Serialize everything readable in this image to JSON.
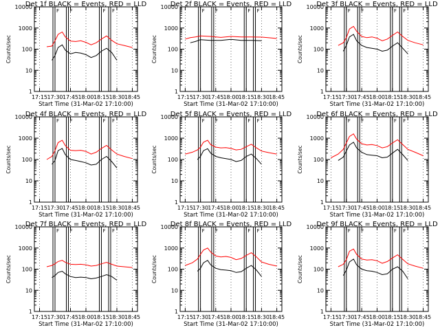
{
  "figure": {
    "xlabel": "Start Time (31-Mar-02 17:10:00)",
    "ylabel": "Counts/sec",
    "x_ticks": [
      "17:15",
      "17:30",
      "17:45",
      "18:00",
      "18:15",
      "18:30",
      "18:45"
    ],
    "y_ticks": [
      "1",
      "10",
      "100",
      "1000",
      "10000"
    ],
    "colors": {
      "events": "#000000",
      "lld": "#ff0000"
    }
  },
  "chart_data": [
    {
      "type": "line",
      "title": "Det 1f BLACK = Events, RED = LLD",
      "xlabel": "Start Time (31-Mar-02 17:10:00)",
      "ylabel": "Counts/sec",
      "ylog": true,
      "ylim": [
        1,
        10000
      ],
      "x_ticks": [
        "17:15",
        "17:30",
        "17:45",
        "18:00",
        "18:15",
        "18:30",
        "18:45"
      ],
      "x": [
        "17:22",
        "17:27",
        "17:30",
        "17:33",
        "17:37",
        "17:40",
        "17:45",
        "17:50",
        "17:55",
        "18:00",
        "18:05",
        "18:10",
        "18:15",
        "18:20",
        "18:25",
        "18:30",
        "18:37",
        "18:45"
      ],
      "series": [
        {
          "name": "Events",
          "values": [
            null,
            30,
            50,
            120,
            160,
            90,
            60,
            70,
            65,
            55,
            40,
            50,
            80,
            110,
            70,
            30,
            null,
            null
          ]
        },
        {
          "name": "LLD",
          "values": [
            130,
            140,
            250,
            500,
            650,
            380,
            240,
            230,
            250,
            210,
            160,
            200,
            300,
            420,
            260,
            180,
            150,
            120
          ]
        }
      ],
      "annotations": [
        "F",
        "F",
        "F",
        "F"
      ]
    },
    {
      "type": "line",
      "title": "Det 2f BLACK = Events, RED = LLD",
      "xlabel": "Start Time (31-Mar-02 17:10:00)",
      "ylabel": "Counts/sec",
      "ylog": true,
      "ylim": [
        1,
        10000
      ],
      "x_ticks": [
        "17:15",
        "17:30",
        "17:45",
        "18:00",
        "18:15",
        "18:30",
        "18:45"
      ],
      "x": [
        "17:15",
        "17:20",
        "17:25",
        "17:30",
        "17:40",
        "17:50",
        "18:00",
        "18:10",
        "18:20",
        "18:30",
        "18:40",
        "18:45"
      ],
      "series": [
        {
          "name": "Events",
          "values": [
            null,
            200,
            230,
            280,
            260,
            260,
            290,
            260,
            260,
            250,
            null,
            null
          ]
        },
        {
          "name": "LLD",
          "values": [
            300,
            350,
            380,
            420,
            400,
            360,
            400,
            380,
            380,
            370,
            340,
            320
          ]
        }
      ],
      "annotations": [
        "F",
        "F",
        "F",
        "F"
      ]
    },
    {
      "type": "line",
      "title": "Det 3f BLACK = Events, RED = LLD",
      "xlabel": "Start Time (31-Mar-02 17:10:00)",
      "ylabel": "Counts/sec",
      "ylog": true,
      "ylim": [
        1,
        10000
      ],
      "x_ticks": [
        "17:15",
        "17:30",
        "17:45",
        "18:00",
        "18:15",
        "18:30",
        "18:45"
      ],
      "x": [
        "17:22",
        "17:27",
        "17:30",
        "17:33",
        "17:37",
        "17:40",
        "17:45",
        "17:50",
        "17:55",
        "18:00",
        "18:05",
        "18:10",
        "18:15",
        "18:20",
        "18:25",
        "18:30",
        "18:37",
        "18:45"
      ],
      "series": [
        {
          "name": "Events",
          "values": [
            null,
            80,
            150,
            380,
            500,
            250,
            150,
            120,
            110,
            100,
            80,
            90,
            140,
            200,
            110,
            60,
            null,
            null
          ]
        },
        {
          "name": "LLD",
          "values": [
            150,
            200,
            350,
            900,
            1200,
            700,
            400,
            350,
            380,
            330,
            250,
            300,
            450,
            650,
            400,
            260,
            200,
            160
          ]
        }
      ],
      "annotations": [
        "F",
        "F",
        "F",
        "F"
      ]
    },
    {
      "type": "line",
      "title": "Det 4f BLACK = Events, RED = LLD",
      "xlabel": "Start Time (31-Mar-02 17:10:00)",
      "ylabel": "Counts/sec",
      "ylog": true,
      "ylim": [
        1,
        10000
      ],
      "x_ticks": [
        "17:15",
        "17:30",
        "17:45",
        "18:00",
        "18:15",
        "18:30",
        "18:45"
      ],
      "x": [
        "17:22",
        "17:27",
        "17:30",
        "17:33",
        "17:37",
        "17:40",
        "17:45",
        "17:50",
        "17:55",
        "18:00",
        "18:05",
        "18:10",
        "18:15",
        "18:20",
        "18:25",
        "18:30",
        "18:37",
        "18:45"
      ],
      "series": [
        {
          "name": "Events",
          "values": [
            null,
            60,
            90,
            260,
            330,
            170,
            100,
            90,
            80,
            70,
            55,
            60,
            100,
            140,
            80,
            40,
            null,
            null
          ]
        },
        {
          "name": "LLD",
          "values": [
            100,
            140,
            260,
            620,
            800,
            450,
            270,
            260,
            270,
            240,
            180,
            220,
            330,
            460,
            280,
            180,
            140,
            110
          ]
        }
      ],
      "annotations": [
        "F",
        "F",
        "F",
        "F"
      ]
    },
    {
      "type": "line",
      "title": "Det 5f BLACK = Events, RED = LLD",
      "xlabel": "Start Time (31-Mar-02 17:10:00)",
      "ylabel": "Counts/sec",
      "ylog": true,
      "ylim": [
        1,
        10000
      ],
      "x_ticks": [
        "17:15",
        "17:30",
        "17:45",
        "18:00",
        "18:15",
        "18:30",
        "18:45"
      ],
      "x": [
        "17:15",
        "17:22",
        "17:27",
        "17:30",
        "17:33",
        "17:37",
        "17:40",
        "17:45",
        "17:50",
        "17:55",
        "18:00",
        "18:05",
        "18:10",
        "18:15",
        "18:20",
        "18:25",
        "18:30",
        "18:37",
        "18:45"
      ],
      "series": [
        {
          "name": "Events",
          "values": [
            null,
            null,
            100,
            140,
            260,
            320,
            200,
            140,
            120,
            110,
            100,
            80,
            90,
            140,
            180,
            110,
            60,
            null,
            null
          ]
        },
        {
          "name": "LLD",
          "values": [
            180,
            220,
            280,
            380,
            650,
            800,
            500,
            380,
            350,
            360,
            330,
            280,
            300,
            400,
            520,
            350,
            250,
            210,
            180
          ]
        }
      ],
      "annotations": [
        "F",
        "F",
        "F",
        "F"
      ]
    },
    {
      "type": "line",
      "title": "Det 6f BLACK = Events, RED = LLD",
      "xlabel": "Start Time (31-Mar-02 17:10:00)",
      "ylabel": "Counts/sec",
      "ylog": true,
      "ylim": [
        1,
        10000
      ],
      "x_ticks": [
        "17:15",
        "17:30",
        "17:45",
        "18:00",
        "18:15",
        "18:30",
        "18:45"
      ],
      "x": [
        "17:15",
        "17:22",
        "17:27",
        "17:30",
        "17:33",
        "17:37",
        "17:40",
        "17:45",
        "17:50",
        "17:55",
        "18:00",
        "18:05",
        "18:10",
        "18:15",
        "18:20",
        "18:25",
        "18:30",
        "18:37",
        "18:45"
      ],
      "series": [
        {
          "name": "Events",
          "values": [
            null,
            90,
            130,
            250,
            480,
            650,
            350,
            220,
            170,
            160,
            150,
            120,
            130,
            200,
            300,
            170,
            90,
            null,
            null
          ]
        },
        {
          "name": "LLD",
          "values": [
            120,
            180,
            300,
            600,
            1200,
            1600,
            900,
            550,
            480,
            500,
            450,
            350,
            400,
            600,
            850,
            500,
            300,
            220,
            150
          ]
        }
      ],
      "annotations": [
        "F",
        "F",
        "F",
        "F"
      ]
    },
    {
      "type": "line",
      "title": "Det 7f BLACK = Events, RED = LLD",
      "xlabel": "Start Time (31-Mar-02 17:10:00)",
      "ylabel": "Counts/sec",
      "ylog": true,
      "ylim": [
        1,
        10000
      ],
      "x_ticks": [
        "17:15",
        "17:30",
        "17:45",
        "18:00",
        "18:15",
        "18:30",
        "18:45"
      ],
      "x": [
        "17:22",
        "17:27",
        "17:30",
        "17:33",
        "17:37",
        "17:40",
        "17:45",
        "17:50",
        "17:55",
        "18:00",
        "18:05",
        "18:10",
        "18:15",
        "18:20",
        "18:25",
        "18:30",
        "18:37",
        "18:45"
      ],
      "series": [
        {
          "name": "Events",
          "values": [
            null,
            40,
            50,
            70,
            80,
            60,
            45,
            40,
            42,
            40,
            35,
            38,
            45,
            55,
            45,
            30,
            null,
            null
          ]
        },
        {
          "name": "LLD",
          "values": [
            130,
            150,
            180,
            230,
            260,
            210,
            170,
            165,
            170,
            160,
            140,
            150,
            180,
            210,
            170,
            140,
            130,
            120
          ]
        }
      ],
      "annotations": [
        "F",
        "F",
        "F",
        "F"
      ]
    },
    {
      "type": "line",
      "title": "Det 8f BLACK = Events, RED = LLD",
      "xlabel": "Start Time (31-Mar-02 17:10:00)",
      "ylabel": "Counts/sec",
      "ylog": true,
      "ylim": [
        1,
        10000
      ],
      "x_ticks": [
        "17:15",
        "17:30",
        "17:45",
        "18:00",
        "18:15",
        "18:30",
        "18:45"
      ],
      "x": [
        "17:15",
        "17:22",
        "17:27",
        "17:30",
        "17:33",
        "17:37",
        "17:40",
        "17:45",
        "17:50",
        "17:55",
        "18:00",
        "18:05",
        "18:10",
        "18:15",
        "18:20",
        "18:25",
        "18:30",
        "18:37",
        "18:45"
      ],
      "series": [
        {
          "name": "Events",
          "values": [
            null,
            null,
            80,
            110,
            200,
            260,
            160,
            110,
            95,
            90,
            85,
            70,
            75,
            110,
            150,
            90,
            45,
            null,
            null
          ]
        },
        {
          "name": "LLD",
          "values": [
            150,
            200,
            300,
            500,
            800,
            1000,
            650,
            420,
            380,
            400,
            360,
            280,
            320,
            450,
            600,
            380,
            220,
            170,
            140
          ]
        }
      ],
      "annotations": [
        "F",
        "F",
        "F",
        "F"
      ]
    },
    {
      "type": "line",
      "title": "Det 9f BLACK = Events, RED = LLD",
      "xlabel": "Start Time (31-Mar-02 17:10:00)",
      "ylabel": "Counts/sec",
      "ylog": true,
      "ylim": [
        1,
        10000
      ],
      "x_ticks": [
        "17:15",
        "17:30",
        "17:45",
        "18:00",
        "18:15",
        "18:30",
        "18:45"
      ],
      "x": [
        "17:22",
        "17:27",
        "17:30",
        "17:33",
        "17:37",
        "17:40",
        "17:45",
        "17:50",
        "17:55",
        "18:00",
        "18:05",
        "18:10",
        "18:15",
        "18:20",
        "18:25",
        "18:30",
        "18:37",
        "18:45"
      ],
      "series": [
        {
          "name": "Events",
          "values": [
            null,
            50,
            90,
            220,
            300,
            160,
            100,
            85,
            80,
            70,
            55,
            60,
            100,
            130,
            80,
            35,
            null,
            null
          ]
        },
        {
          "name": "LLD",
          "values": [
            130,
            170,
            280,
            700,
            900,
            500,
            300,
            270,
            280,
            250,
            190,
            230,
            340,
            480,
            290,
            180,
            140,
            110
          ]
        }
      ],
      "annotations": [
        "F",
        "F",
        "F",
        "F"
      ]
    }
  ]
}
